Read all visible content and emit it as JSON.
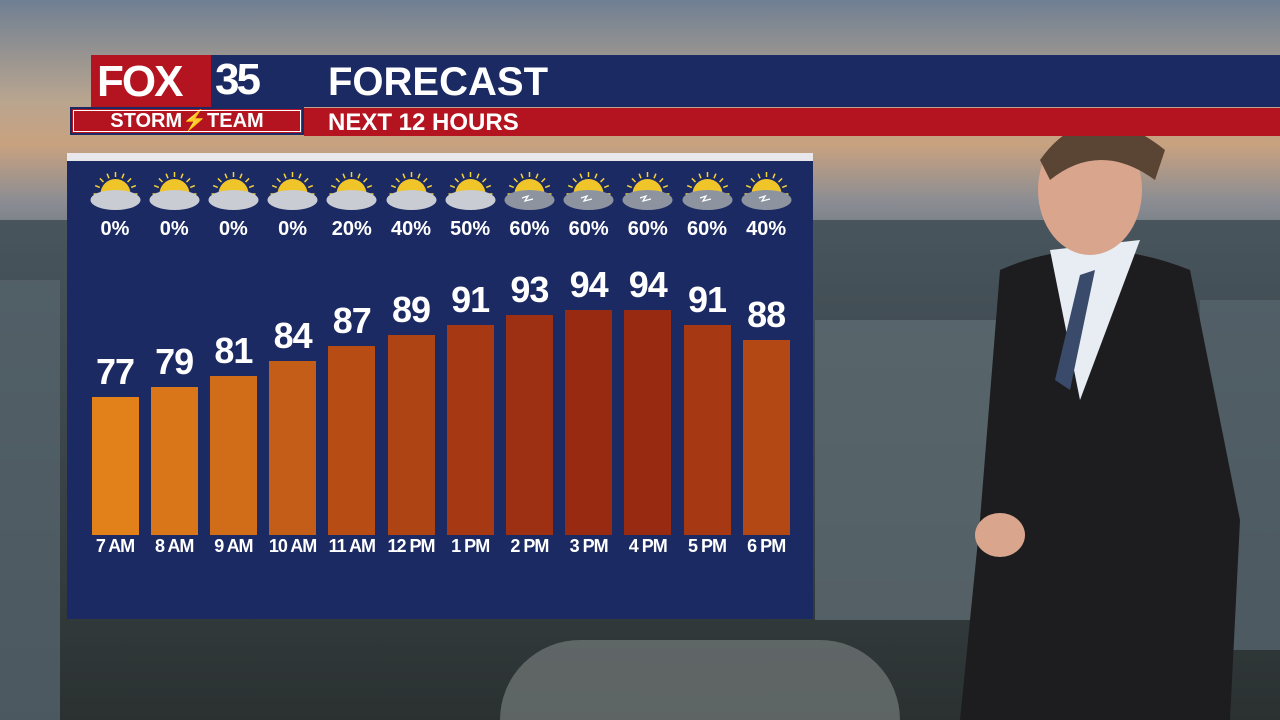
{
  "brand": {
    "logo_text": "FOX",
    "channel": "35",
    "team": "STORM⚡TEAM"
  },
  "header": {
    "title": "FORECAST",
    "subtitle": "NEXT 12 HOURS"
  },
  "colors": {
    "panel": "#1c2a63",
    "brand_red": "#b3141f",
    "bar_low": "#e2801a",
    "bar_high": "#992a12"
  },
  "chart_data": {
    "type": "bar",
    "categories": [
      "7 AM",
      "8 AM",
      "9 AM",
      "10 AM",
      "11 AM",
      "12 PM",
      "1 PM",
      "2 PM",
      "3 PM",
      "4 PM",
      "5 PM",
      "6 PM"
    ],
    "values": [
      77,
      79,
      81,
      84,
      87,
      89,
      91,
      93,
      94,
      94,
      91,
      88
    ],
    "precip_chance": [
      "0%",
      "0%",
      "0%",
      "0%",
      "20%",
      "40%",
      "50%",
      "60%",
      "60%",
      "60%",
      "60%",
      "40%"
    ],
    "icons": [
      "partly-cloudy",
      "partly-cloudy",
      "partly-cloudy",
      "partly-cloudy",
      "partly-cloudy",
      "partly-cloudy",
      "partly-cloudy",
      "partly-cloudy-thunderstorm",
      "partly-cloudy-thunderstorm",
      "partly-cloudy-thunderstorm",
      "partly-cloudy-thunderstorm",
      "partly-cloudy-thunderstorm"
    ],
    "data_labels": true,
    "grid": false,
    "title": "",
    "xlabel": "",
    "ylabel": ""
  }
}
